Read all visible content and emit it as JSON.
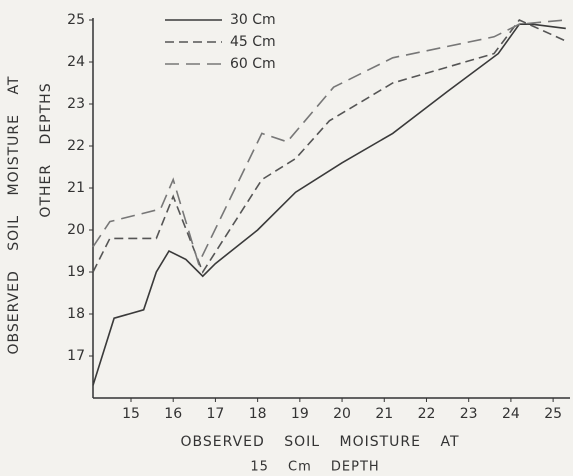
{
  "chart_data": {
    "type": "line",
    "y_label": [
      "OBSERVED SOIL MOISTURE AT",
      "OTHER DEPTHS"
    ],
    "x_label": [
      "OBSERVED SOIL MOISTURE AT",
      "15 Cm DEPTH"
    ],
    "xlim": [
      14.1,
      25.4
    ],
    "ylim": [
      16,
      25
    ],
    "xticks": [
      15,
      16,
      17,
      18,
      19,
      20,
      21,
      22,
      23,
      24,
      25
    ],
    "yticks": [
      17,
      18,
      19,
      20,
      21,
      22,
      23,
      24,
      25
    ],
    "series": [
      {
        "name": "30 Cm",
        "color": "#3a3a3a",
        "dash": "solid",
        "x": [
          14.1,
          14.6,
          15.3,
          15.6,
          15.9,
          16.3,
          16.7,
          17.0,
          18.0,
          18.9,
          20.0,
          21.2,
          22.5,
          23.7,
          24.2,
          24.5,
          25.3
        ],
        "values": [
          16.3,
          17.9,
          18.1,
          19.0,
          19.5,
          19.3,
          18.9,
          19.2,
          20.0,
          20.9,
          21.6,
          22.3,
          23.3,
          24.2,
          24.9,
          24.9,
          24.8
        ]
      },
      {
        "name": "45 Cm",
        "color": "#555555",
        "dash": "medium",
        "x": [
          14.1,
          14.5,
          15.6,
          16.0,
          16.7,
          18.1,
          18.9,
          19.7,
          21.2,
          23.6,
          24.2,
          25.3
        ],
        "values": [
          19.0,
          19.8,
          19.8,
          20.8,
          19.0,
          21.2,
          21.7,
          22.6,
          23.5,
          24.2,
          25.0,
          24.5
        ]
      },
      {
        "name": "60 Cm",
        "color": "#777777",
        "dash": "long",
        "x": [
          14.1,
          14.5,
          15.7,
          16.0,
          16.6,
          18.1,
          18.7,
          19.8,
          21.2,
          23.6,
          24.2,
          25.3
        ],
        "values": [
          19.6,
          20.2,
          20.5,
          21.2,
          19.2,
          22.3,
          22.1,
          23.4,
          24.1,
          24.6,
          24.9,
          25.0
        ]
      }
    ]
  }
}
